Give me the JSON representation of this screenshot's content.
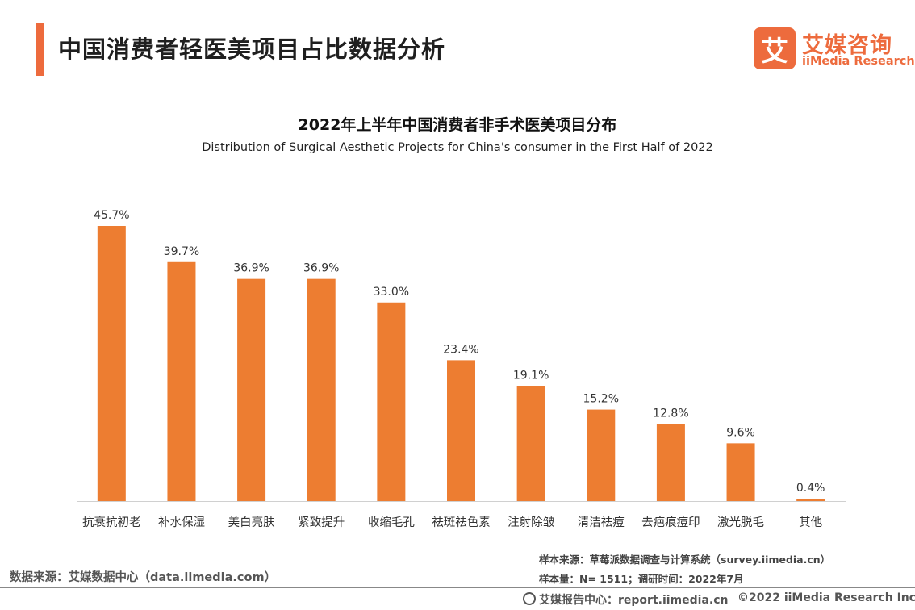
{
  "header": {
    "title": "中国消费者轻医美项目占比数据分析"
  },
  "brand": {
    "mark": "艾",
    "name_cn": "艾媒咨询",
    "name_en": "iiMedia Research"
  },
  "colors": {
    "accent": "#ED6B3D",
    "bar": "#ED7D31",
    "axis": "#D0D0D0"
  },
  "chart_data": {
    "type": "bar",
    "title": "2022年上半年中国消费者非手术医美项目分布",
    "subtitle": "Distribution of Surgical Aesthetic Projects for China's consumer in the First Half of 2022",
    "categories": [
      "抗衰抗初老",
      "补水保湿",
      "美白亮肤",
      "紧致提升",
      "收缩毛孔",
      "祛斑祛色素",
      "注射除皱",
      "清洁祛痘",
      "去疤痕痘印",
      "激光脱毛",
      "其他"
    ],
    "values": [
      45.7,
      39.7,
      36.9,
      36.9,
      33.0,
      23.4,
      19.1,
      15.2,
      12.8,
      9.6,
      0.4
    ],
    "value_labels": [
      "45.7%",
      "39.7%",
      "36.9%",
      "36.9%",
      "33.0%",
      "23.4%",
      "19.1%",
      "15.2%",
      "12.8%",
      "9.6%",
      "0.4%"
    ],
    "unit": "%",
    "ylim": [
      0,
      45.7
    ],
    "xlabel": "",
    "ylabel": "",
    "grid": false,
    "legend": "none"
  },
  "notes": {
    "sample_source": "样本来源：草莓派数据调查与计算系统（survey.iimedia.cn）",
    "sample_size": "样本量：N= 1511；调研时间：2022年7月"
  },
  "footer": {
    "data_source": "数据来源：艾媒数据中心（data.iimedia.com）",
    "report_center": "艾媒报告中心：report.iimedia.cn",
    "copyright": "©2022  iiMedia Research  Inc"
  }
}
